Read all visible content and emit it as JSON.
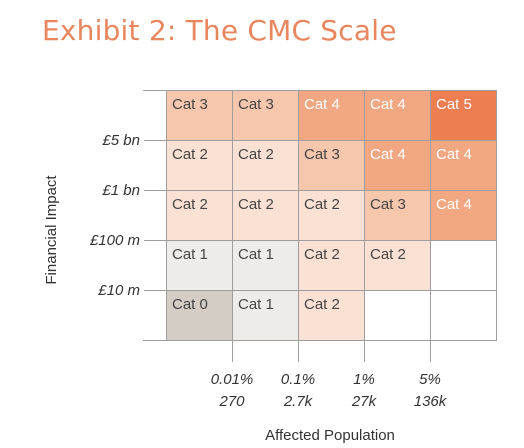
{
  "chart_data": {
    "type": "heatmap",
    "title": "Exhibit 2: The CMC Scale",
    "xlabel": "Affected Population",
    "ylabel": "Financial Impact",
    "x_ticks": [
      {
        "label": "0.01%",
        "sublabel": "270"
      },
      {
        "label": "0.1%",
        "sublabel": "2.7k"
      },
      {
        "label": "1%",
        "sublabel": "27k"
      },
      {
        "label": "5%",
        "sublabel": "136k"
      }
    ],
    "y_ticks": [
      "£5 bn",
      "£1 bn",
      "£100 m",
      "£10 m"
    ],
    "cells": [
      [
        "Cat 3",
        "Cat 3",
        "Cat 4",
        "Cat 4",
        "Cat 5"
      ],
      [
        "Cat 2",
        "Cat 2",
        "Cat 3",
        "Cat 4",
        "Cat 4"
      ],
      [
        "Cat 2",
        "Cat 2",
        "Cat 2",
        "Cat 3",
        "Cat 4"
      ],
      [
        "Cat 1",
        "Cat 1",
        "Cat 2",
        "Cat 2",
        ""
      ],
      [
        "Cat 0",
        "Cat 1",
        "Cat 2",
        "",
        ""
      ]
    ],
    "category_colors": {
      "Cat 0": "#d4cdc6",
      "Cat 1": "#eeece9",
      "Cat 2": "#fbe1d4",
      "Cat 3": "#f6c6ad",
      "Cat 4": "#f1a781",
      "Cat 5": "#ec7e52"
    },
    "text_colors": {
      "Cat 0": "#444444",
      "Cat 1": "#444444",
      "Cat 2": "#444444",
      "Cat 3": "#444444",
      "Cat 4": "#ffffff",
      "Cat 5": "#ffffff"
    },
    "title_color": "#e8865e"
  }
}
